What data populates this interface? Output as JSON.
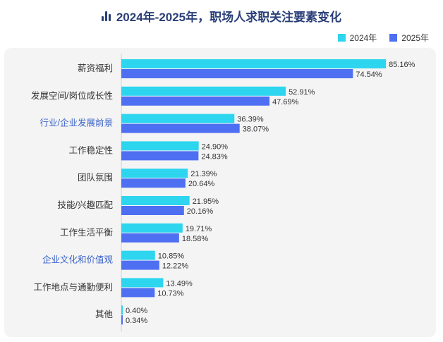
{
  "title": "2024年-2025年，职场人求职关注要素变化",
  "colors": {
    "s2024": "#2dd5ef",
    "s2025": "#4f6ff2",
    "title": "#2a3f78",
    "highlight": "#3a63c8",
    "label": "#333333"
  },
  "chart_data": {
    "type": "bar",
    "orientation": "horizontal",
    "title": "2024年-2025年，职场人求职关注要素变化",
    "legend": "top-right",
    "categories": [
      "薪资福利",
      "发展空间/岗位成长性",
      "行业/企业发展前景",
      "工作稳定性",
      "团队氛围",
      "技能/兴趣匹配",
      "工作生活平衡",
      "企业文化和价值观",
      "工作地点与通勤便利",
      "其他"
    ],
    "highlighted_categories": [
      "行业/企业发展前景",
      "企业文化和价值观"
    ],
    "series": [
      {
        "name": "2024年",
        "values": [
          85.16,
          52.91,
          36.39,
          24.9,
          21.39,
          21.95,
          19.71,
          10.85,
          13.49,
          0.4
        ],
        "labels": [
          "85.16%",
          "52.91%",
          "36.39%",
          "24.90%",
          "21.39%",
          "21.95%",
          "19.71%",
          "10.85%",
          "13.49%",
          "0.40%"
        ]
      },
      {
        "name": "2025年",
        "values": [
          74.54,
          47.69,
          38.07,
          24.83,
          20.64,
          20.16,
          18.58,
          12.22,
          10.73,
          0.34
        ],
        "labels": [
          "74.54%",
          "47.69%",
          "38.07%",
          "24.83%",
          "20.64%",
          "20.16%",
          "18.58%",
          "12.22%",
          "10.73%",
          "0.34%"
        ]
      }
    ],
    "xlim": [
      0,
      100
    ],
    "grid": false
  }
}
